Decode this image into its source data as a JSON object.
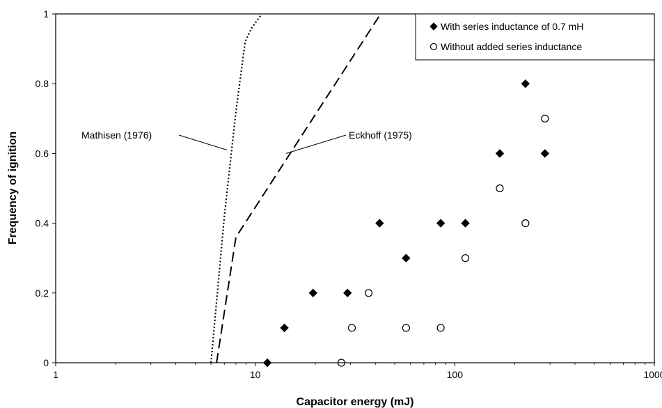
{
  "chart_data": {
    "type": "scatter",
    "xlabel": "Capacitor energy (mJ)",
    "ylabel": "Frequency of ignition",
    "xscale": "log",
    "xlim": [
      1,
      1000
    ],
    "ylim": [
      0,
      1
    ],
    "xticks": [
      1,
      10,
      100,
      1000
    ],
    "xtick_labels": [
      "1",
      "10",
      "100",
      "1000"
    ],
    "yticks": [
      0,
      0.2,
      0.4,
      0.6,
      0.8,
      1
    ],
    "ytick_labels": [
      "0",
      "0.2",
      "0.4",
      "0.6",
      "0.8",
      "1"
    ],
    "grid": false,
    "legend_position": "top-right",
    "series": [
      {
        "name": "With series inductance of 0.7 mH",
        "marker": "filled-diamond",
        "x": [
          11.5,
          14,
          19.5,
          29,
          42,
          57,
          85,
          113,
          168,
          226,
          283
        ],
        "y": [
          0,
          0.1,
          0.2,
          0.2,
          0.4,
          0.3,
          0.4,
          0.4,
          0.6,
          0.8,
          0.6
        ]
      },
      {
        "name": "Without added series inductance",
        "marker": "open-circle",
        "x": [
          27,
          30.5,
          37,
          57,
          85,
          113,
          168,
          226,
          283
        ],
        "y": [
          0,
          0.1,
          0.2,
          0.1,
          0.1,
          0.3,
          0.5,
          0.4,
          0.7
        ]
      }
    ],
    "curves": [
      {
        "name": "Mathisen (1976)",
        "style": "dotted",
        "x": [
          6,
          7,
          8,
          8.9,
          9.6,
          10.8
        ],
        "y": [
          0,
          0.42,
          0.72,
          0.92,
          0.96,
          1
        ]
      },
      {
        "name": "Eckhoff (1975)",
        "style": "dashed",
        "x": [
          6.4,
          8,
          42.5
        ],
        "y": [
          0,
          0.36,
          1
        ]
      }
    ],
    "annotations": [
      {
        "text": "Mathisen (1976)",
        "target_x": 7.2,
        "target_y": 0.61
      },
      {
        "text": "Eckhoff (1975)",
        "target_x": 14.3,
        "target_y": 0.6
      }
    ]
  }
}
